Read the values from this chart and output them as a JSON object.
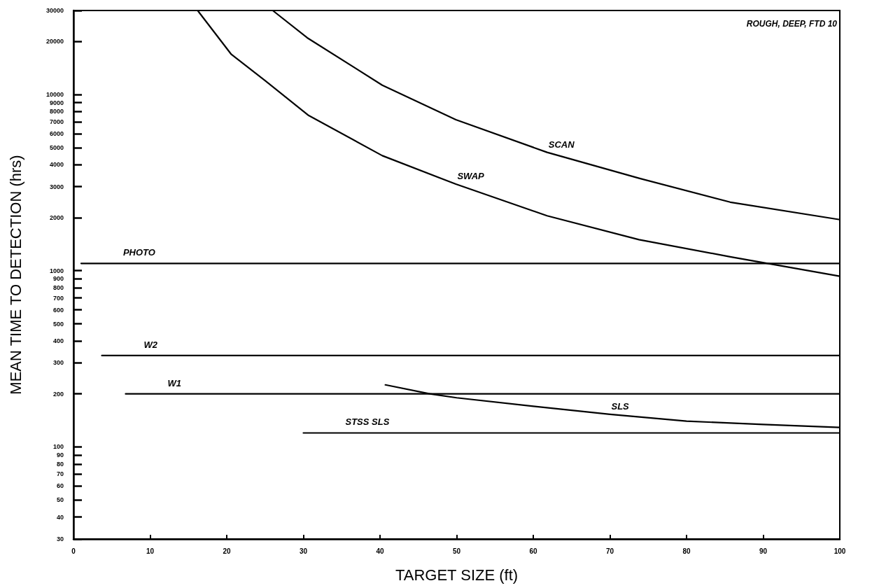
{
  "chart_data": {
    "type": "line",
    "xlabel": "TARGET SIZE (ft)",
    "ylabel": "MEAN TIME TO DETECTION (hrs)",
    "annotations": [
      "ROUGH, DEEP, FTD 10"
    ],
    "log": "y",
    "grid": false,
    "legend": false,
    "marker": "none",
    "line_style": "solid",
    "xlim": [
      0,
      100
    ],
    "xticks": [
      0,
      10,
      20,
      30,
      40,
      50,
      60,
      70,
      80,
      90,
      100
    ],
    "ylim": [
      30,
      30000
    ],
    "yticks": [
      30,
      40,
      50,
      60,
      70,
      80,
      90,
      100,
      200,
      300,
      400,
      500,
      600,
      700,
      800,
      900,
      1000,
      2000,
      3000,
      4000,
      5000,
      6000,
      7000,
      8000,
      9000,
      10000,
      20000,
      30000
    ],
    "series": [
      {
        "name": "SCAN",
        "color": "#000000",
        "x": [
          26,
          30.5,
          40.3,
          49.9,
          61.8,
          73.8,
          85.7,
          100
        ],
        "values": [
          30000,
          21000,
          11300,
          7200,
          4700,
          3350,
          2450,
          1950
        ]
      },
      {
        "name": "SWAP",
        "color": "#000000",
        "x": [
          16.2,
          20.6,
          25,
          30.7,
          40.3,
          49.9,
          61.8,
          73.8,
          85.7,
          100
        ],
        "values": [
          30000,
          16900,
          12000,
          7600,
          4500,
          3100,
          2050,
          1500,
          1200,
          930
        ]
      },
      {
        "name": "PHOTO",
        "color": "#000000",
        "x": [
          1,
          100
        ],
        "values": [
          1100,
          1100
        ]
      },
      {
        "name": "W2",
        "color": "#000000",
        "x": [
          3.7,
          100
        ],
        "values": [
          330,
          330
        ]
      },
      {
        "name": "W1",
        "color": "#000000",
        "x": [
          6.8,
          100
        ],
        "values": [
          200,
          200
        ]
      },
      {
        "name": "SLS",
        "color": "#000000",
        "x": [
          40.7,
          46.5,
          50,
          60,
          70,
          80,
          90,
          100
        ],
        "values": [
          225,
          200,
          190,
          170,
          153,
          140,
          134,
          129
        ]
      },
      {
        "name": "STSS SLS",
        "color": "#000000",
        "x": [
          30,
          100
        ],
        "values": [
          120,
          120
        ]
      }
    ]
  }
}
